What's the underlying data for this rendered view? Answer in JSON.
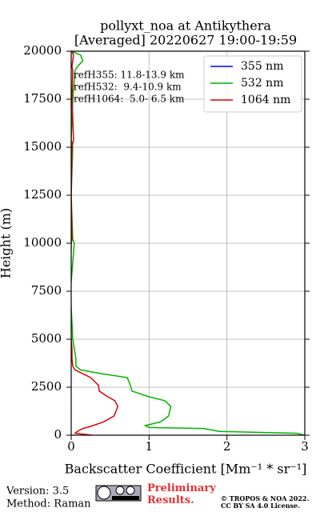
{
  "chart_data": {
    "type": "line",
    "title": "pollyxt_noa at Antikythera",
    "subtitle": "[Averaged] 20220627 19:00-19:59",
    "x_label": "Backscatter Coefficient [Mm⁻¹ * sr⁻¹]",
    "y_label": "Height (m)",
    "xlim": [
      0,
      3
    ],
    "xticks": [
      0,
      1,
      2,
      3
    ],
    "ylim": [
      0,
      20000
    ],
    "yticks": [
      0,
      2500,
      5000,
      7500,
      10000,
      12500,
      15000,
      17500,
      20000
    ],
    "grid": true,
    "legend": "upper right",
    "annotations": [
      "refH355: 11.8-13.9 km",
      "refH532:  9.4-10.9 km",
      "refH1064:  5.0- 6.5 km"
    ],
    "y": [
      0,
      100,
      200,
      350,
      400,
      500,
      700,
      1000,
      1500,
      1800,
      2000,
      2300,
      2600,
      3000,
      3200,
      3400,
      3600,
      4000,
      4500,
      5000,
      7500,
      10000,
      10200,
      12500,
      15000,
      15400,
      17500,
      19000,
      19200,
      19500,
      19800,
      20000
    ],
    "series": [
      {
        "name": "355 nm",
        "color": "#0000ff",
        "values": [
          null,
          null,
          null,
          null,
          null,
          null,
          null,
          null,
          null,
          null,
          null,
          null,
          null,
          null,
          null,
          null,
          null,
          null,
          null,
          null,
          null,
          null,
          null,
          null,
          null,
          null,
          null,
          null,
          null,
          null,
          null,
          null
        ]
      },
      {
        "name": "532 nm",
        "color": "#00b400",
        "values": [
          3.0,
          2.9,
          1.9,
          1.7,
          1.0,
          0.95,
          1.15,
          1.25,
          1.28,
          1.2,
          1.0,
          0.78,
          0.76,
          0.72,
          0.4,
          0.12,
          0.06,
          0.06,
          0.04,
          0.02,
          -0.01,
          0.04,
          0.02,
          0.0,
          0.02,
          0.0,
          0.02,
          0.05,
          0.08,
          0.15,
          0.12,
          0.0
        ]
      },
      {
        "name": "1064 nm",
        "color": "#e00000",
        "values": [
          0.27,
          0.05,
          0.08,
          0.15,
          0.2,
          0.28,
          0.42,
          0.55,
          0.6,
          0.56,
          0.47,
          0.36,
          0.35,
          0.25,
          0.15,
          0.05,
          0.02,
          0.01,
          0.01,
          0.0,
          -0.01,
          0.0,
          0.01,
          0.0,
          0.01,
          0.03,
          0.01,
          0.02,
          0.01,
          0.02,
          0.03,
          0.01
        ]
      }
    ]
  },
  "footer": {
    "version": "Version: 3.5",
    "method": "Method: Raman",
    "notice": "Preliminary Results.",
    "copyright": "© TROPOS & NOA 2022.",
    "license": "CC BY SA 4.0 License."
  }
}
